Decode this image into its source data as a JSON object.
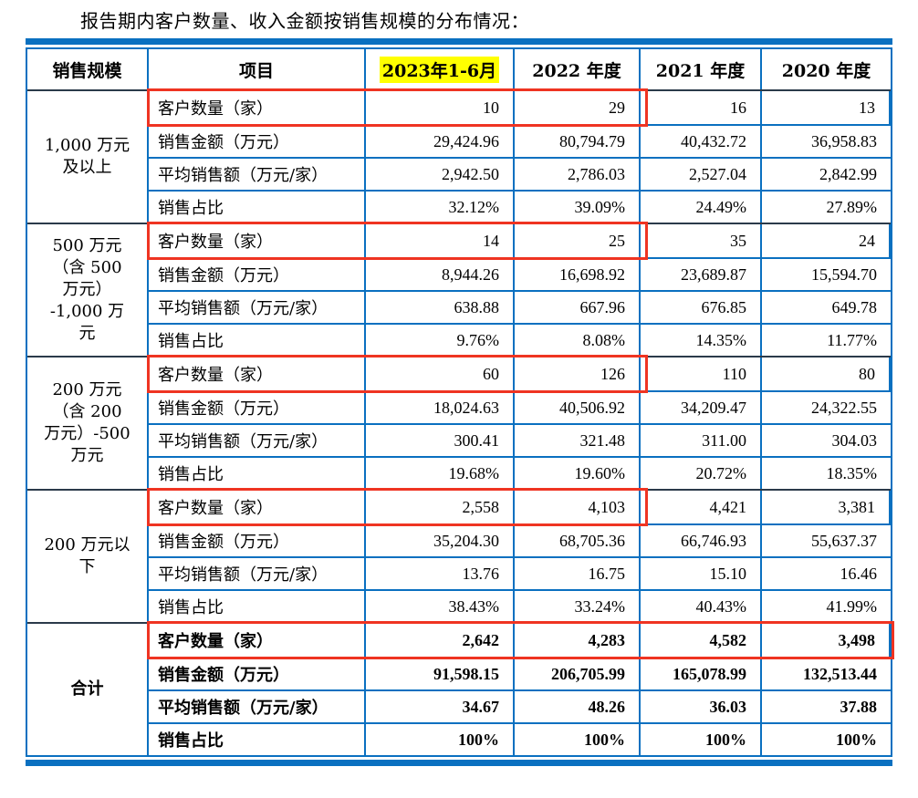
{
  "title": "报告期内客户数量、收入金额按销售规模的分布情况：",
  "colors": {
    "table_blue": "#0a70c0",
    "dark_rule": "#2b3a4a",
    "highlight_red": "#ef3422",
    "highlight_yellow": "#ffff00"
  },
  "table": {
    "columns": [
      "销售规模",
      "项目",
      "2023年1-6月",
      "2022 年度",
      "2021 年度",
      "2020 年度"
    ],
    "highlighted_column": "2023年1-6月",
    "row_labels": [
      "客户数量（家）",
      "销售金额（万元）",
      "平均销售额（万元/家）",
      "销售占比"
    ],
    "groups": [
      {
        "scale": "1,000 万元\n及以上",
        "bold": false,
        "red_box_span": 3,
        "rows": [
          [
            "10",
            "29",
            "16",
            "13"
          ],
          [
            "29,424.96",
            "80,794.79",
            "40,432.72",
            "36,958.83"
          ],
          [
            "2,942.50",
            "2,786.03",
            "2,527.04",
            "2,842.99"
          ],
          [
            "32.12%",
            "39.09%",
            "24.49%",
            "27.89%"
          ]
        ]
      },
      {
        "scale": "500 万元\n（含 500\n万元）\n-1,000 万\n元",
        "bold": false,
        "red_box_span": 3,
        "rows": [
          [
            "14",
            "25",
            "35",
            "24"
          ],
          [
            "8,944.26",
            "16,698.92",
            "23,689.87",
            "15,594.70"
          ],
          [
            "638.88",
            "667.96",
            "676.85",
            "649.78"
          ],
          [
            "9.76%",
            "8.08%",
            "14.35%",
            "11.77%"
          ]
        ]
      },
      {
        "scale": "200 万元\n（含 200\n万元）-500\n万元",
        "bold": false,
        "red_box_span": 3,
        "rows": [
          [
            "60",
            "126",
            "110",
            "80"
          ],
          [
            "18,024.63",
            "40,506.92",
            "34,209.47",
            "24,322.55"
          ],
          [
            "300.41",
            "321.48",
            "311.00",
            "304.03"
          ],
          [
            "19.68%",
            "19.60%",
            "20.72%",
            "18.35%"
          ]
        ]
      },
      {
        "scale": "200 万元以\n下",
        "bold": false,
        "red_box_span": 3,
        "rows": [
          [
            "2,558",
            "4,103",
            "4,421",
            "3,381"
          ],
          [
            "35,204.30",
            "68,705.36",
            "66,746.93",
            "55,637.37"
          ],
          [
            "13.76",
            "16.75",
            "15.10",
            "16.46"
          ],
          [
            "38.43%",
            "33.24%",
            "40.43%",
            "41.99%"
          ]
        ]
      },
      {
        "scale": "合计",
        "bold": true,
        "red_box_span": 5,
        "rows": [
          [
            "2,642",
            "4,283",
            "4,582",
            "3,498"
          ],
          [
            "91,598.15",
            "206,705.99",
            "165,078.99",
            "132,513.44"
          ],
          [
            "34.67",
            "48.26",
            "36.03",
            "37.88"
          ],
          [
            "100%",
            "100%",
            "100%",
            "100%"
          ]
        ]
      }
    ]
  }
}
